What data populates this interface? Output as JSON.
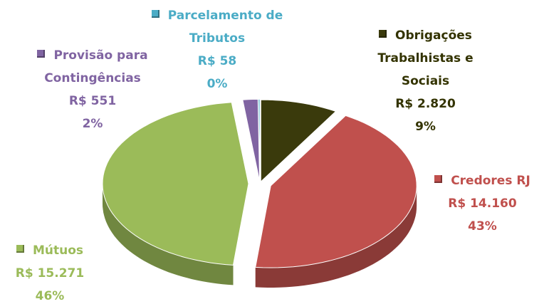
{
  "chart_data": {
    "type": "pie",
    "categories": [
      "Obrigações Trabalhistas e Sociais",
      "Credores RJ",
      "Mútuos",
      "Provisão para Contingências",
      "Parcelamento de Tributos"
    ],
    "values": [
      2820,
      14160,
      15271,
      551,
      58
    ],
    "value_labels": [
      "R$ 2.820",
      "R$ 14.160",
      "R$ 15.271",
      "R$ 551",
      "R$ 58"
    ],
    "percentages": [
      9,
      43,
      46,
      2,
      0
    ],
    "percentage_labels": [
      "9%",
      "43%",
      "46%",
      "2%",
      "0%"
    ],
    "colors": [
      "#3a3a0c",
      "#c0504d",
      "#9bbb59",
      "#8064a2",
      "#4bacc6"
    ],
    "label_colors": [
      "#333300",
      "#c0504d",
      "#9bbb59",
      "#8064a2",
      "#4bacc6"
    ]
  }
}
